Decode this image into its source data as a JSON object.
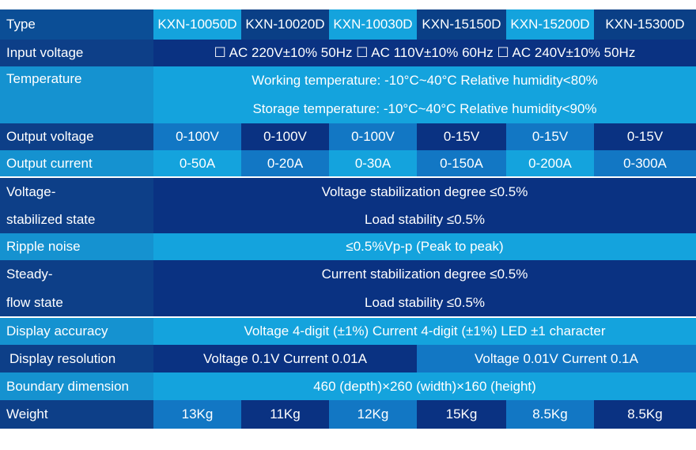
{
  "header": {
    "label": "Type",
    "models": [
      "KXN-10050D",
      "KXN-10020D",
      "KXN-10030D",
      "KXN-15150D",
      "KXN-15200D",
      "KXN-15300D"
    ]
  },
  "rows": {
    "input_voltage": {
      "label": "Input voltage",
      "value": "☐ AC 220V±10% 50Hz ☐ AC 110V±10% 60Hz ☐ AC 240V±10% 50Hz"
    },
    "temperature": {
      "label": "Temperature",
      "working": "Working temperature: -10°C~40°C Relative humidity<80%",
      "storage": "Storage temperature: -10°C~40°C Relative humidity<90%"
    },
    "output_voltage": {
      "label": "Output voltage",
      "values": [
        "0-100V",
        "0-100V",
        "0-100V",
        "0-15V",
        "0-15V",
        "0-15V"
      ]
    },
    "output_current": {
      "label": "Output current",
      "values": [
        "0-50A",
        "0-20A",
        "0-30A",
        "0-150A",
        "0-200A",
        "0-300A"
      ]
    },
    "voltage_stabilized": {
      "label_line1": "Voltage-",
      "label_line2": "stabilized state",
      "line1": "Voltage stabilization degree ≤0.5%",
      "line2": "Load stability ≤0.5%"
    },
    "ripple_noise": {
      "label": "Ripple noise",
      "value": "≤0.5%Vp-p (Peak to peak)"
    },
    "steady_flow": {
      "label_line1": "Steady-",
      "label_line2": "flow state",
      "line1": "Current stabilization degree ≤0.5%",
      "line2": "Load stability ≤0.5%"
    },
    "display_accuracy": {
      "label": "Display accuracy",
      "value": "Voltage 4-digit (±1%) Current 4-digit (±1%) LED ±1 character"
    },
    "display_resolution": {
      "label": "Display resolution",
      "value_a": "Voltage 0.1V Current 0.01A",
      "value_b": "Voltage 0.01V Current 0.1A"
    },
    "boundary_dimension": {
      "label": "Boundary dimension",
      "value": "460 (depth)×260 (width)×160 (height)"
    },
    "weight": {
      "label": "Weight",
      "values": [
        "13Kg",
        "11Kg",
        "12Kg",
        "15Kg",
        "8.5Kg",
        "8.5Kg"
      ]
    }
  }
}
